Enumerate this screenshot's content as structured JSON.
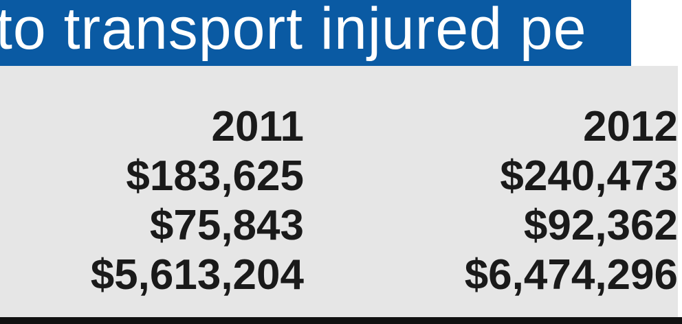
{
  "header": {
    "title": "to transport injured pe"
  },
  "table": {
    "columns": [
      "2011",
      "2012"
    ],
    "rows": [
      [
        "$183,625",
        "$240,473"
      ],
      [
        "$75,843",
        "$92,362"
      ],
      [
        "$5,613,204",
        "$6,474,296"
      ]
    ]
  }
}
